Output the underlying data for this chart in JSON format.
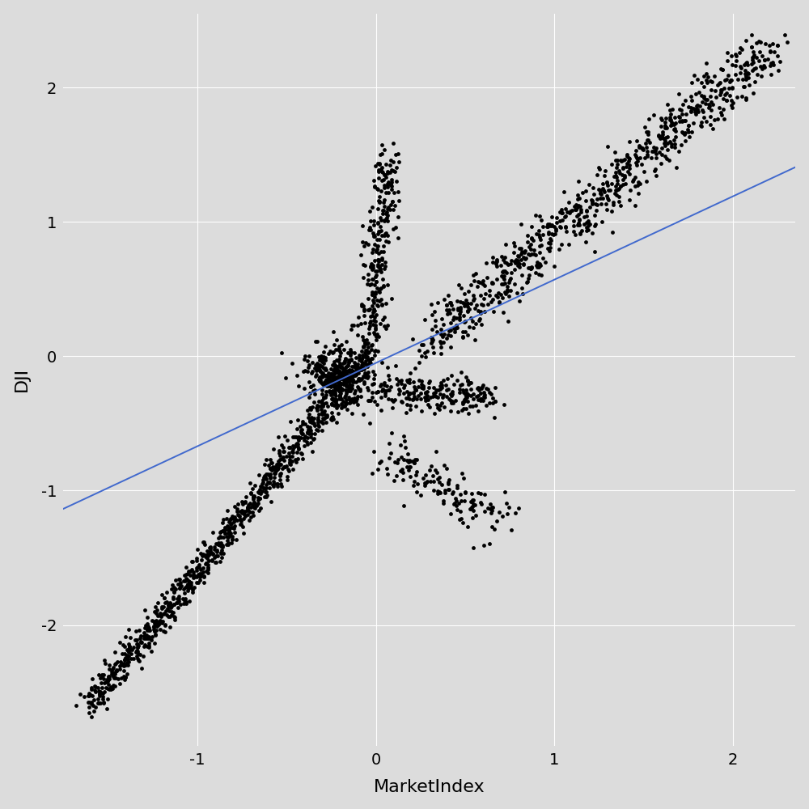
{
  "title": "",
  "xlabel": "MarketIndex",
  "ylabel": "DJI",
  "xlim": [
    -1.75,
    2.35
  ],
  "ylim": [
    -2.9,
    2.55
  ],
  "xticks": [
    -1,
    0,
    1,
    2
  ],
  "yticks": [
    -2,
    -1,
    0,
    1,
    2
  ],
  "background_color": "#DCDCDC",
  "grid_color": "#FFFFFF",
  "dot_color": "#000000",
  "dot_size": 12,
  "dot_alpha": 1.0,
  "line_color": "#4169CD",
  "line_width": 1.4,
  "regression_slope": 0.62,
  "regression_intercept": -0.05,
  "xlabel_fontsize": 16,
  "ylabel_fontsize": 16,
  "tick_fontsize": 14
}
